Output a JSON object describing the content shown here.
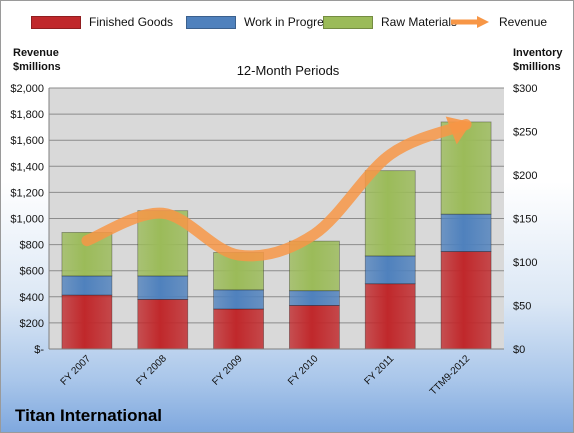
{
  "legend": {
    "finished_goods": "Finished Goods",
    "work_in_progress": "Work in Progress",
    "raw_materials": "Raw Materials",
    "revenue": "Revenue"
  },
  "labels": {
    "left_axis_line1": "Revenue",
    "left_axis_line2": "$millions",
    "right_axis_line1": "Inventory",
    "right_axis_line2": "$millions",
    "subtitle": "12-Month Periods",
    "company": "Titan International"
  },
  "colors": {
    "finished_goods": "#c0282b",
    "work_in_progress": "#4f81bd",
    "raw_materials": "#9bbb59",
    "revenue": "#f79646",
    "plot_bg": "#d9d9d9"
  },
  "chart_data": {
    "type": "bar",
    "stacked": true,
    "categories": [
      "FY 2007",
      "FY 2008",
      "FY 2009",
      "FY 2010",
      "FY 2011",
      "TTM9-2012"
    ],
    "series": [
      {
        "name": "Finished Goods",
        "axis": "right",
        "values": [
          62,
          57,
          46,
          50,
          75,
          112
        ]
      },
      {
        "name": "Work in Progress",
        "axis": "right",
        "values": [
          22,
          27,
          22,
          17,
          32,
          43
        ]
      },
      {
        "name": "Raw Materials",
        "axis": "right",
        "values": [
          50,
          75,
          43,
          57,
          98,
          106
        ]
      },
      {
        "name": "Revenue",
        "type": "line",
        "axis": "left",
        "values": [
          830,
          1040,
          720,
          880,
          1490,
          1720
        ]
      }
    ],
    "left_axis": {
      "range": [
        0,
        2000
      ],
      "ticks": [
        "$-",
        "$200",
        "$400",
        "$600",
        "$800",
        "$1,000",
        "$1,200",
        "$1,400",
        "$1,600",
        "$1,800",
        "$2,000"
      ]
    },
    "right_axis": {
      "range": [
        0,
        300
      ],
      "ticks": [
        "$0",
        "$50",
        "$100",
        "$150",
        "$200",
        "$250",
        "$300"
      ]
    },
    "grid": true,
    "legend_position": "top"
  }
}
